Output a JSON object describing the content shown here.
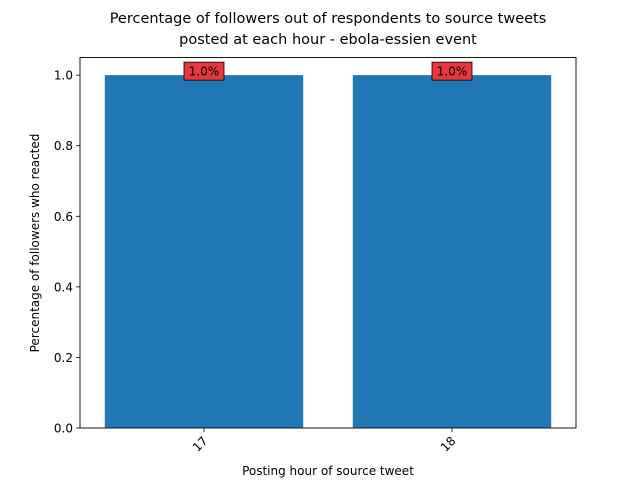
{
  "chart_data": {
    "type": "bar",
    "title_line1": "Percentage of followers out of respondents to source tweets",
    "title_line2": "posted at each hour - ebola-essien event",
    "xlabel": "Posting hour of source tweet",
    "ylabel": "Percentage of followers who reacted",
    "categories": [
      "17",
      "18"
    ],
    "values": [
      1.0,
      1.0
    ],
    "data_labels": [
      "1.0%",
      "1.0%"
    ],
    "ylim": [
      0,
      1.05
    ],
    "y_ticks": [
      0.0,
      0.2,
      0.4,
      0.6,
      0.8,
      1.0
    ],
    "y_tick_labels": [
      "0.0",
      "0.2",
      "0.4",
      "0.6",
      "0.8",
      "1.0"
    ],
    "grid": false,
    "bar_color": "#1f77b4",
    "label_box_color": "#e8383d",
    "x_tick_rotation": 45
  }
}
